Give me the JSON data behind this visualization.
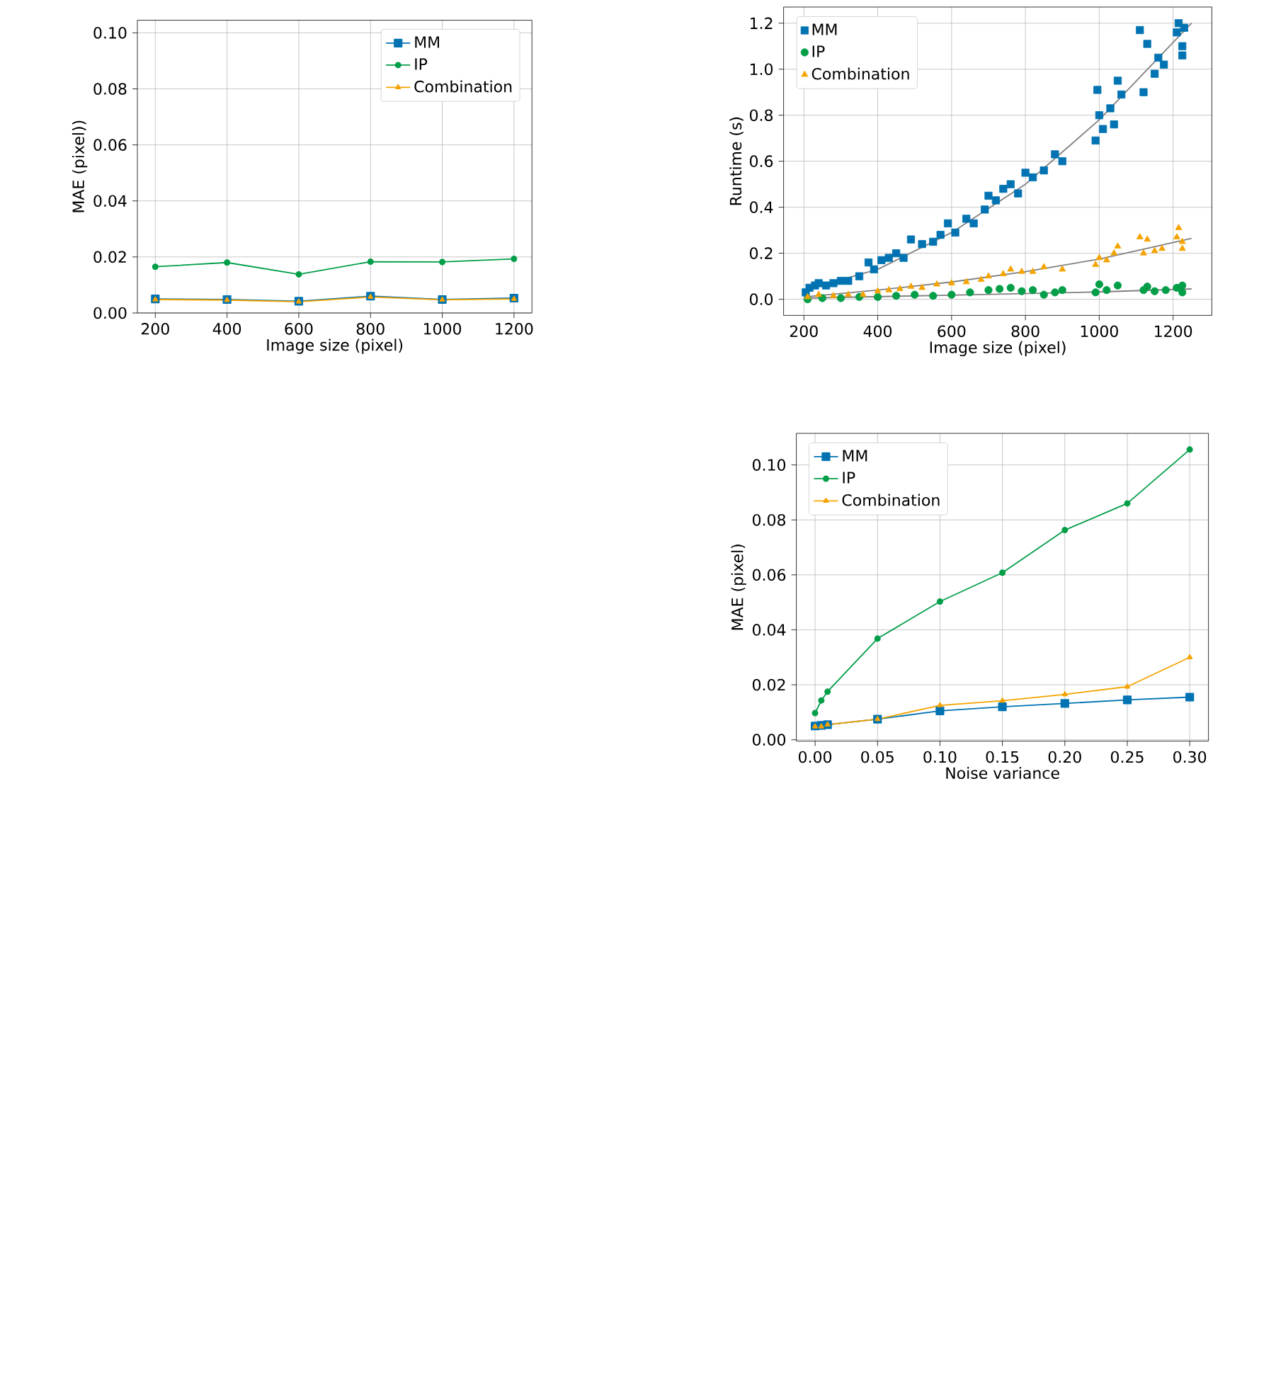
{
  "chart_data": [
    {
      "type": "line",
      "xlabel": "Image size (pixel)",
      "ylabel": "MAE (pixel))",
      "xlim": [
        150,
        1250
      ],
      "ylim": [
        0,
        0.1045
      ],
      "xticks": [
        200,
        400,
        600,
        800,
        1000,
        1200
      ],
      "yticks": [
        {
          "value": 0,
          "label": "0.00"
        },
        {
          "value": 0.02,
          "label": "0.02"
        },
        {
          "value": 0.04,
          "label": "0.04"
        },
        {
          "value": 0.06,
          "label": "0.06"
        },
        {
          "value": 0.08,
          "label": "0.08"
        },
        {
          "value": 0.1,
          "label": "0.10"
        }
      ],
      "grid": true,
      "legend": "top right",
      "x": [
        200,
        400,
        600,
        800,
        1000,
        1200
      ],
      "series": [
        {
          "name": "MM",
          "color": "#0173b2",
          "marker": "square",
          "values": [
            0.005,
            0.0048,
            0.0042,
            0.006,
            0.0048,
            0.0053
          ]
        },
        {
          "name": "IP",
          "color": "#029e48",
          "marker": "circle",
          "values": [
            0.0165,
            0.018,
            0.0138,
            0.0183,
            0.0182,
            0.0193
          ]
        },
        {
          "name": "Combination",
          "color": "#f5a300",
          "marker": "triangle",
          "values": [
            0.0048,
            0.0046,
            0.004,
            0.0057,
            0.0047,
            0.005
          ]
        }
      ]
    },
    {
      "type": "scatter",
      "xlabel": "Image size (pixel)",
      "ylabel": "Runtime (s)",
      "xlim": [
        145,
        1305
      ],
      "ylim": [
        -0.07,
        1.27
      ],
      "xticks": [
        200,
        400,
        600,
        800,
        1000,
        1200
      ],
      "yticks": [
        {
          "value": 0,
          "label": "0.0"
        },
        {
          "value": 0.2,
          "label": "0.2"
        },
        {
          "value": 0.4,
          "label": "0.4"
        },
        {
          "value": 0.6,
          "label": "0.6"
        },
        {
          "value": 0.8,
          "label": "0.8"
        },
        {
          "value": 1.0,
          "label": "1.0"
        },
        {
          "value": 1.2,
          "label": "1.2"
        }
      ],
      "grid": true,
      "legend": "top left",
      "series": [
        {
          "name": "MM",
          "color": "#0173b2",
          "marker": "square",
          "x": [
            205,
            215,
            230,
            240,
            260,
            280,
            300,
            320,
            350,
            375,
            390,
            410,
            430,
            450,
            470,
            490,
            520,
            550,
            570,
            590,
            610,
            640,
            660,
            690,
            700,
            720,
            740,
            760,
            780,
            800,
            820,
            850,
            880,
            900,
            990,
            995,
            1000,
            1010,
            1030,
            1040,
            1050,
            1060,
            1110,
            1120,
            1130,
            1150,
            1160,
            1175,
            1210,
            1215,
            1225,
            1225,
            1230
          ],
          "values": [
            0.03,
            0.05,
            0.06,
            0.07,
            0.06,
            0.07,
            0.08,
            0.08,
            0.1,
            0.16,
            0.13,
            0.17,
            0.18,
            0.2,
            0.18,
            0.26,
            0.24,
            0.25,
            0.28,
            0.33,
            0.29,
            0.35,
            0.33,
            0.39,
            0.45,
            0.43,
            0.48,
            0.5,
            0.46,
            0.55,
            0.53,
            0.56,
            0.63,
            0.6,
            0.69,
            0.91,
            0.8,
            0.74,
            0.83,
            0.76,
            0.95,
            0.89,
            1.17,
            0.9,
            1.11,
            0.98,
            1.05,
            1.02,
            1.16,
            1.2,
            1.1,
            1.06,
            1.18
          ]
        },
        {
          "name": "IP",
          "color": "#029e48",
          "marker": "circle",
          "x": [
            210,
            250,
            300,
            350,
            400,
            450,
            500,
            550,
            600,
            650,
            700,
            730,
            760,
            790,
            820,
            850,
            880,
            900,
            990,
            1000,
            1020,
            1050,
            1120,
            1130,
            1150,
            1180,
            1210,
            1225,
            1225
          ],
          "values": [
            0.0,
            0.005,
            0.005,
            0.01,
            0.01,
            0.015,
            0.02,
            0.015,
            0.02,
            0.03,
            0.04,
            0.045,
            0.05,
            0.035,
            0.04,
            0.02,
            0.03,
            0.04,
            0.03,
            0.065,
            0.04,
            0.06,
            0.04,
            0.055,
            0.035,
            0.04,
            0.05,
            0.06,
            0.03
          ]
        },
        {
          "name": "Combination",
          "color": "#f5a300",
          "marker": "triangle",
          "x": [
            210,
            240,
            280,
            320,
            360,
            400,
            430,
            460,
            490,
            520,
            560,
            600,
            640,
            680,
            700,
            740,
            760,
            790,
            820,
            850,
            900,
            990,
            1000,
            1020,
            1050,
            1040,
            1110,
            1120,
            1130,
            1150,
            1170,
            1210,
            1215,
            1225,
            1225
          ],
          "values": [
            0.01,
            0.02,
            0.015,
            0.02,
            0.02,
            0.035,
            0.04,
            0.045,
            0.055,
            0.05,
            0.065,
            0.07,
            0.075,
            0.085,
            0.1,
            0.11,
            0.13,
            0.12,
            0.12,
            0.14,
            0.13,
            0.15,
            0.18,
            0.17,
            0.23,
            0.2,
            0.27,
            0.2,
            0.26,
            0.21,
            0.22,
            0.27,
            0.31,
            0.22,
            0.25
          ]
        },
        {
          "type": "line",
          "color": "#808080",
          "marker": "none",
          "x": [
            200,
            400,
            600,
            800,
            1000,
            1250
          ],
          "values": [
            0.04,
            0.13,
            0.29,
            0.5,
            0.78,
            1.2
          ]
        },
        {
          "type": "line",
          "color": "#808080",
          "marker": "none",
          "x": [
            200,
            400,
            600,
            800,
            1000,
            1250
          ],
          "values": [
            0.01,
            0.04,
            0.075,
            0.12,
            0.175,
            0.265
          ]
        },
        {
          "type": "line",
          "color": "#808080",
          "marker": "none",
          "x": [
            200,
            600,
            1000,
            1250
          ],
          "values": [
            0.005,
            0.018,
            0.032,
            0.045
          ]
        }
      ]
    },
    {
      "type": "line",
      "xlabel": "Noise variance",
      "ylabel": "MAE (pixel)",
      "xlim": [
        -0.015,
        0.315
      ],
      "ylim": [
        -0.0005,
        0.1115
      ],
      "xticks": [
        {
          "value": 0,
          "label": "0.00"
        },
        {
          "value": 0.05,
          "label": "0.05"
        },
        {
          "value": 0.1,
          "label": "0.10"
        },
        {
          "value": 0.15,
          "label": "0.15"
        },
        {
          "value": 0.2,
          "label": "0.20"
        },
        {
          "value": 0.25,
          "label": "0.25"
        },
        {
          "value": 0.3,
          "label": "0.30"
        }
      ],
      "yticks": [
        {
          "value": 0,
          "label": "0.00"
        },
        {
          "value": 0.02,
          "label": "0.02"
        },
        {
          "value": 0.04,
          "label": "0.04"
        },
        {
          "value": 0.06,
          "label": "0.06"
        },
        {
          "value": 0.08,
          "label": "0.08"
        },
        {
          "value": 0.1,
          "label": "0.10"
        }
      ],
      "grid": true,
      "legend": "top left",
      "x": [
        0,
        0.005,
        0.01,
        0.05,
        0.1,
        0.15,
        0.2,
        0.25,
        0.3
      ],
      "series": [
        {
          "name": "MM",
          "color": "#0173b2",
          "marker": "square",
          "values": [
            0.005,
            0.0052,
            0.0055,
            0.0075,
            0.0105,
            0.012,
            0.0132,
            0.0145,
            0.0155
          ]
        },
        {
          "name": "IP",
          "color": "#029e48",
          "marker": "circle",
          "values": [
            0.0097,
            0.0143,
            0.0175,
            0.0368,
            0.0503,
            0.0608,
            0.0763,
            0.086,
            0.1056
          ]
        },
        {
          "name": "Combination",
          "color": "#f5a300",
          "marker": "triangle",
          "values": [
            0.0048,
            0.0048,
            0.0055,
            0.0075,
            0.0125,
            0.0142,
            0.0165,
            0.0193,
            0.03
          ]
        }
      ]
    }
  ]
}
